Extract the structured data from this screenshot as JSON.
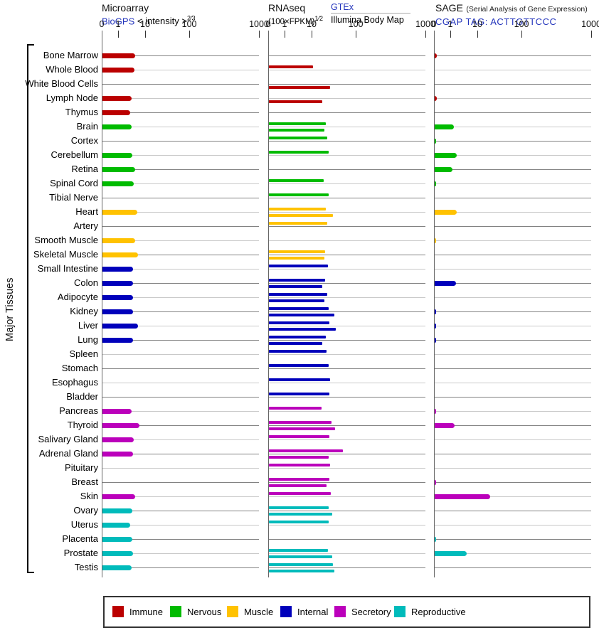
{
  "figure": {
    "y_axis_label": "Major Tissues",
    "group_colors": {
      "Immune": "#bb0000",
      "Nervous": "#00bb00",
      "Muscle": "#ffc200",
      "Internal": "#0000bb",
      "Secretory": "#bb00bb",
      "Reproductive": "#00bbbb"
    },
    "grid_colors": {
      "dark": "#828282",
      "light": "#c9c9c9"
    }
  },
  "panels": [
    {
      "title": "Microarray",
      "link": "BioGPS",
      "scale": "< intensity >",
      "scale_sup": "2⁄3"
    },
    {
      "title": "RNAseq",
      "scale": "(100×FPKM)",
      "scale_sup": "1⁄2",
      "link": "GTEx",
      "link_sub": "Illumina Body Map"
    },
    {
      "title": "SAGE",
      "note": "(Serial Analysis of Gene Expression)",
      "link": "CGAP TAG: ACTTGTTCCC"
    }
  ],
  "axis": {
    "tick_labels": [
      "0",
      "1",
      "10",
      "100",
      "1000"
    ],
    "tick_pct": [
      0,
      10.4,
      27.6,
      55.7,
      100
    ],
    "scale_note": "non-linear power-law axis, identical for all three panels"
  },
  "legend": [
    {
      "label": "Immune",
      "color": "#bb0000"
    },
    {
      "label": "Nervous",
      "color": "#00bb00"
    },
    {
      "label": "Muscle",
      "color": "#ffc200"
    },
    {
      "label": "Internal",
      "color": "#0000bb"
    },
    {
      "label": "Secretory",
      "color": "#bb00bb"
    },
    {
      "label": "Reproductive",
      "color": "#00bbbb"
    }
  ],
  "chart_data": {
    "type": "bar",
    "orientation": "horizontal",
    "value_unit": "percent of axis length (0 tick = 0%, 1000 tick = 100%); null = no bar",
    "tissues": [
      {
        "name": "Bone Marrow",
        "group": "Immune"
      },
      {
        "name": "Whole Blood",
        "group": "Immune"
      },
      {
        "name": "White Blood Cells",
        "group": "Immune"
      },
      {
        "name": "Lymph Node",
        "group": "Immune"
      },
      {
        "name": "Thymus",
        "group": "Immune"
      },
      {
        "name": "Brain",
        "group": "Nervous"
      },
      {
        "name": "Cortex",
        "group": "Nervous"
      },
      {
        "name": "Cerebellum",
        "group": "Nervous"
      },
      {
        "name": "Retina",
        "group": "Nervous"
      },
      {
        "name": "Spinal Cord",
        "group": "Nervous"
      },
      {
        "name": "Tibial Nerve",
        "group": "Nervous"
      },
      {
        "name": "Heart",
        "group": "Muscle"
      },
      {
        "name": "Artery",
        "group": "Muscle"
      },
      {
        "name": "Smooth Muscle",
        "group": "Muscle"
      },
      {
        "name": "Skeletal Muscle",
        "group": "Muscle"
      },
      {
        "name": "Small Intestine",
        "group": "Internal"
      },
      {
        "name": "Colon",
        "group": "Internal"
      },
      {
        "name": "Adipocyte",
        "group": "Internal"
      },
      {
        "name": "Kidney",
        "group": "Internal"
      },
      {
        "name": "Liver",
        "group": "Internal"
      },
      {
        "name": "Lung",
        "group": "Internal"
      },
      {
        "name": "Spleen",
        "group": "Internal"
      },
      {
        "name": "Stomach",
        "group": "Internal"
      },
      {
        "name": "Esophagus",
        "group": "Internal"
      },
      {
        "name": "Bladder",
        "group": "Internal"
      },
      {
        "name": "Pancreas",
        "group": "Secretory"
      },
      {
        "name": "Thyroid",
        "group": "Secretory"
      },
      {
        "name": "Salivary Gland",
        "group": "Secretory"
      },
      {
        "name": "Adrenal Gland",
        "group": "Secretory"
      },
      {
        "name": "Pituitary",
        "group": "Secretory"
      },
      {
        "name": "Breast",
        "group": "Secretory"
      },
      {
        "name": "Skin",
        "group": "Secretory"
      },
      {
        "name": "Ovary",
        "group": "Reproductive"
      },
      {
        "name": "Uterus",
        "group": "Reproductive"
      },
      {
        "name": "Placenta",
        "group": "Reproductive"
      },
      {
        "name": "Prostate",
        "group": "Reproductive"
      },
      {
        "name": "Testis",
        "group": "Reproductive"
      }
    ],
    "series": [
      {
        "name": "Microarray (BioGPS)",
        "panel": 0,
        "style": "thick",
        "pct": [
          20.9,
          20.2,
          null,
          18.7,
          17.8,
          18.4,
          null,
          18.9,
          21.0,
          20.0,
          null,
          22.3,
          null,
          20.8,
          22.8,
          19.6,
          19.5,
          19.3,
          19.5,
          22.6,
          19.5,
          null,
          null,
          null,
          null,
          18.6,
          23.5,
          19.9,
          19.5,
          null,
          null,
          20.8,
          19.0,
          17.6,
          19.0,
          19.5,
          18.6
        ]
      },
      {
        "name": "RNAseq GTEx",
        "panel": 1,
        "style": "upper",
        "pct": [
          null,
          28.0,
          null,
          null,
          null,
          36.3,
          37.1,
          37.9,
          null,
          35.0,
          38.1,
          36.3,
          37.2,
          null,
          35.6,
          37.4,
          35.7,
          37.1,
          37.9,
          38.6,
          36.3,
          36.7,
          37.9,
          38.9,
          38.3,
          33.6,
          39.8,
          38.5,
          46.9,
          38.8,
          38.3,
          39.4,
          37.9,
          37.9,
          null,
          37.6,
          40.6
        ]
      },
      {
        "name": "RNAseq Illumina Body Map",
        "panel": 1,
        "style": "lower",
        "pct": [
          null,
          null,
          38.8,
          33.8,
          null,
          35.3,
          null,
          null,
          null,
          null,
          null,
          40.6,
          null,
          null,
          35.2,
          null,
          33.8,
          35.3,
          41.5,
          42.7,
          34.1,
          null,
          null,
          null,
          null,
          null,
          42.1,
          null,
          38.1,
          null,
          36.8,
          null,
          40.3,
          null,
          null,
          40.3,
          41.6
        ]
      },
      {
        "name": "SAGE (CGAP TAG: ACTTGTTCCC)",
        "panel": 2,
        "style": "thick",
        "pct": [
          1.2,
          null,
          null,
          1.2,
          null,
          12.4,
          0.7,
          13.9,
          11.3,
          0.7,
          null,
          13.9,
          null,
          0.7,
          null,
          null,
          13.4,
          null,
          0.7,
          0.5,
          1.0,
          null,
          null,
          null,
          null,
          0.8,
          12.8,
          null,
          null,
          null,
          0.5,
          35.2,
          null,
          null,
          0.5,
          20.4,
          null
        ]
      }
    ]
  }
}
